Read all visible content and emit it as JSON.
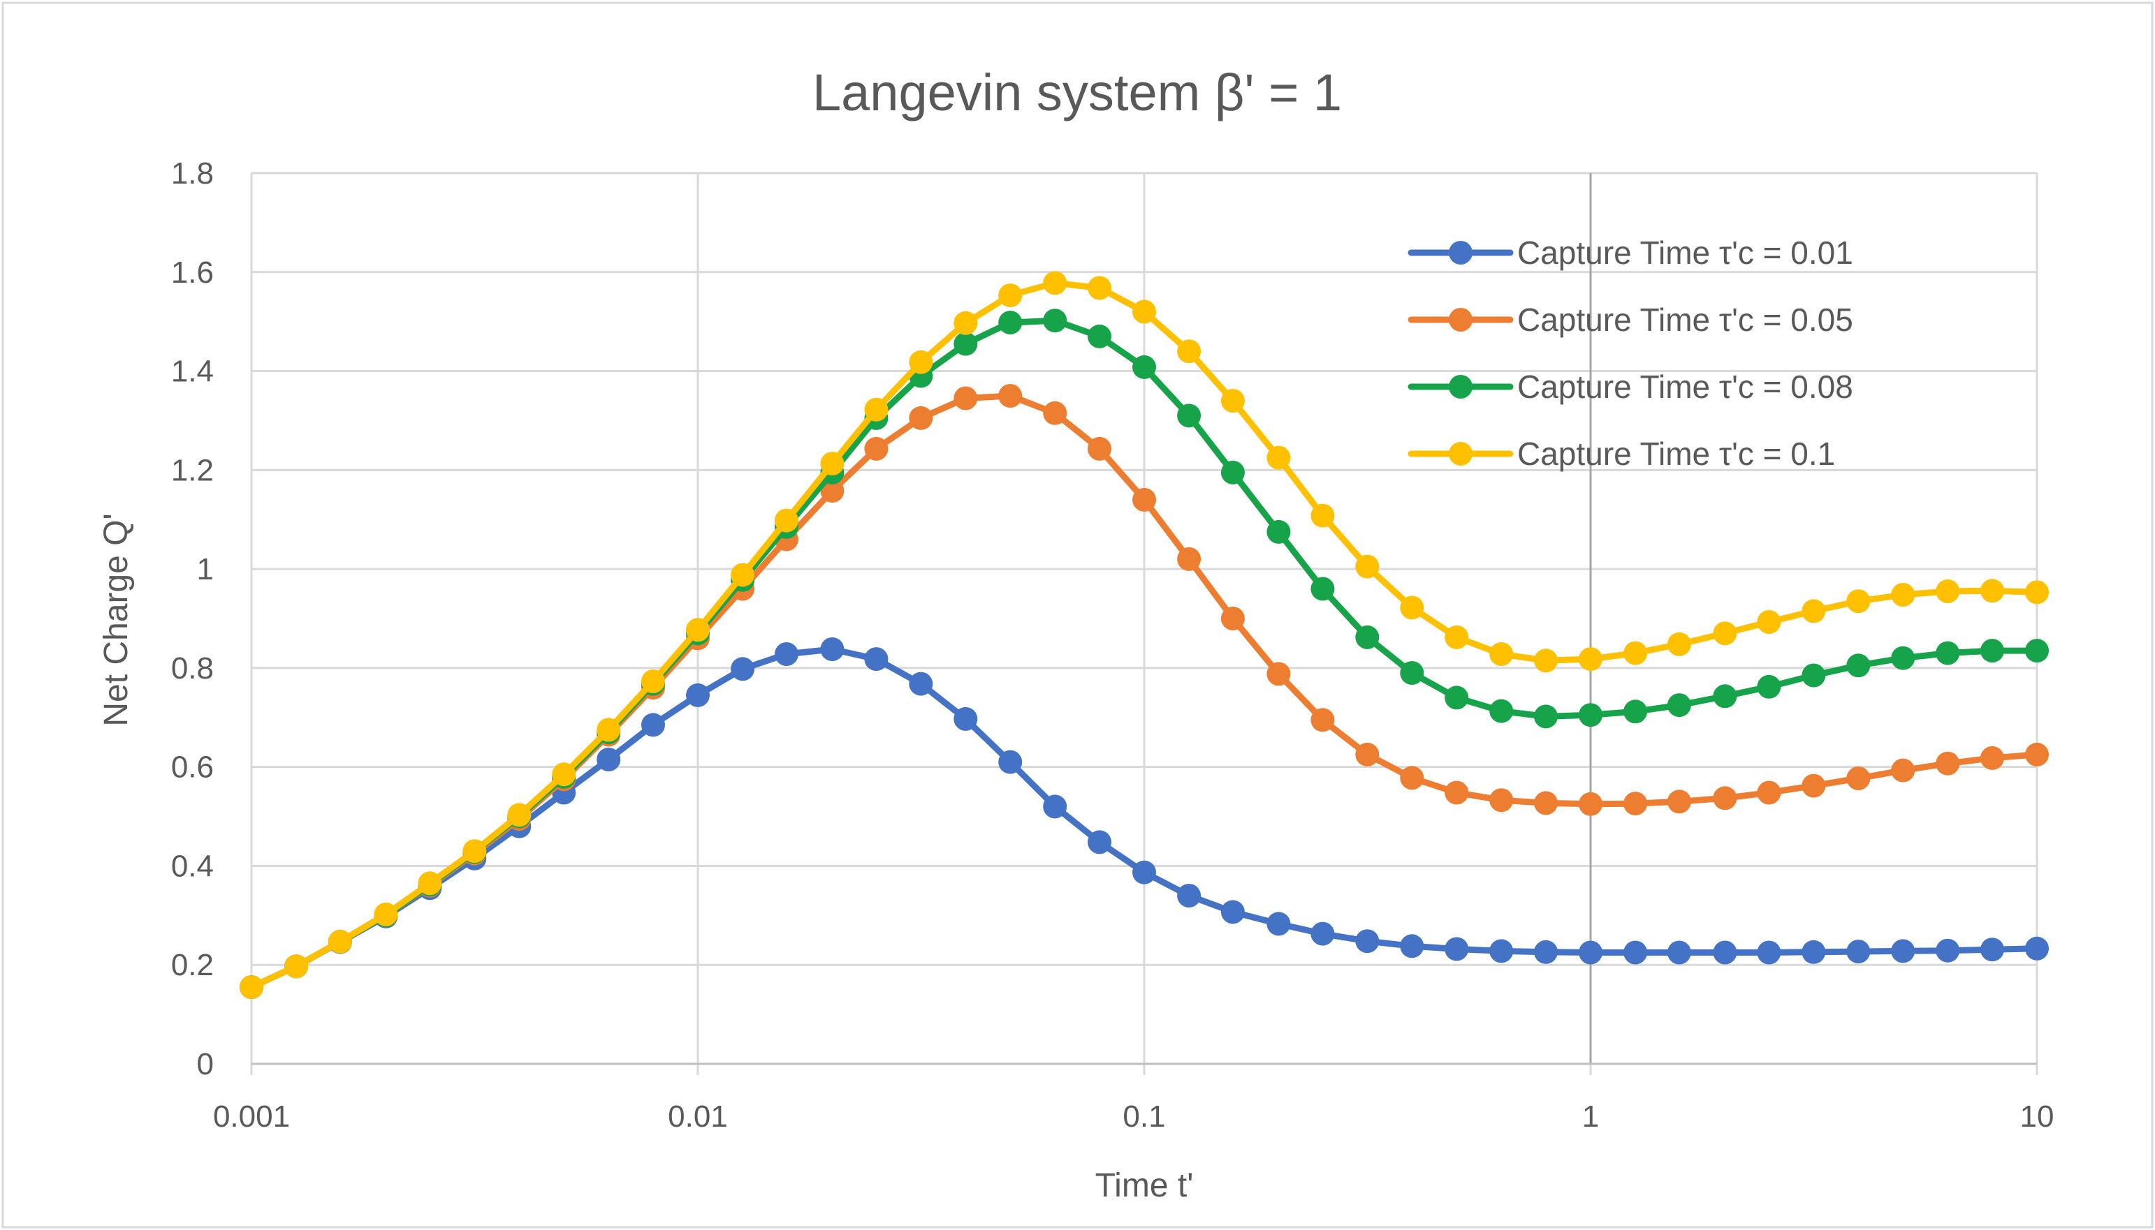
{
  "chart_data": {
    "type": "line",
    "title": "Langevin system β' = 1",
    "xlabel": "Time t'",
    "ylabel": "Net Charge Q'",
    "xscale": "log",
    "xlim": [
      0.001,
      10
    ],
    "ylim": [
      0,
      1.8
    ],
    "grid": true,
    "legend_position": "top-right",
    "x_ticks": [
      "0.001",
      "0.01",
      "0.1",
      "1",
      "10"
    ],
    "y_ticks": [
      "0",
      "0.2",
      "0.4",
      "0.6",
      "0.8",
      "1",
      "1.2",
      "1.4",
      "1.6",
      "1.8"
    ],
    "x": [
      0.001,
      0.00126,
      0.00158,
      0.002,
      0.00251,
      0.00316,
      0.00398,
      0.00501,
      0.00631,
      0.00794,
      0.01,
      0.0126,
      0.0158,
      0.02,
      0.0251,
      0.0316,
      0.0398,
      0.0501,
      0.0631,
      0.0794,
      0.1,
      0.126,
      0.158,
      0.2,
      0.251,
      0.316,
      0.398,
      0.501,
      0.631,
      0.794,
      1,
      1.26,
      1.58,
      2,
      2.51,
      3.16,
      3.98,
      5.01,
      6.31,
      7.94,
      10
    ],
    "series": [
      {
        "name": "Capture Time τ'c = 0.01",
        "color": "#4472C4",
        "values": [
          0.155,
          0.197,
          0.246,
          0.298,
          0.355,
          0.415,
          0.48,
          0.548,
          0.615,
          0.685,
          0.745,
          0.798,
          0.828,
          0.838,
          0.818,
          0.768,
          0.697,
          0.61,
          0.52,
          0.448,
          0.387,
          0.34,
          0.307,
          0.283,
          0.263,
          0.248,
          0.238,
          0.232,
          0.228,
          0.226,
          0.225,
          0.225,
          0.225,
          0.225,
          0.225,
          0.226,
          0.227,
          0.228,
          0.229,
          0.231,
          0.233
        ]
      },
      {
        "name": "Capture Time τ'c = 0.05",
        "color": "#ED7D31",
        "values": [
          0.155,
          0.197,
          0.247,
          0.3,
          0.36,
          0.425,
          0.495,
          0.575,
          0.665,
          0.76,
          0.86,
          0.96,
          1.06,
          1.158,
          1.243,
          1.305,
          1.345,
          1.35,
          1.315,
          1.243,
          1.14,
          1.02,
          0.9,
          0.788,
          0.695,
          0.625,
          0.578,
          0.548,
          0.533,
          0.527,
          0.525,
          0.526,
          0.53,
          0.537,
          0.548,
          0.562,
          0.577,
          0.593,
          0.607,
          0.618,
          0.625
        ]
      },
      {
        "name": "Capture Time τ'c = 0.08",
        "color": "#16A34A",
        "values": [
          0.155,
          0.197,
          0.247,
          0.3,
          0.362,
          0.428,
          0.5,
          0.58,
          0.67,
          0.768,
          0.87,
          0.978,
          1.085,
          1.195,
          1.305,
          1.39,
          1.455,
          1.498,
          1.502,
          1.47,
          1.408,
          1.31,
          1.195,
          1.075,
          0.96,
          0.862,
          0.79,
          0.74,
          0.713,
          0.702,
          0.705,
          0.712,
          0.725,
          0.743,
          0.762,
          0.785,
          0.805,
          0.82,
          0.83,
          0.835,
          0.835
        ]
      },
      {
        "name": "Capture Time τ'c = 0.1",
        "color": "#FFC000",
        "values": [
          0.155,
          0.197,
          0.247,
          0.302,
          0.365,
          0.43,
          0.503,
          0.585,
          0.675,
          0.773,
          0.877,
          0.988,
          1.098,
          1.213,
          1.322,
          1.418,
          1.497,
          1.553,
          1.578,
          1.568,
          1.52,
          1.44,
          1.34,
          1.225,
          1.108,
          1.005,
          0.922,
          0.862,
          0.828,
          0.815,
          0.818,
          0.83,
          0.848,
          0.87,
          0.893,
          0.915,
          0.935,
          0.948,
          0.955,
          0.956,
          0.953
        ]
      }
    ]
  }
}
